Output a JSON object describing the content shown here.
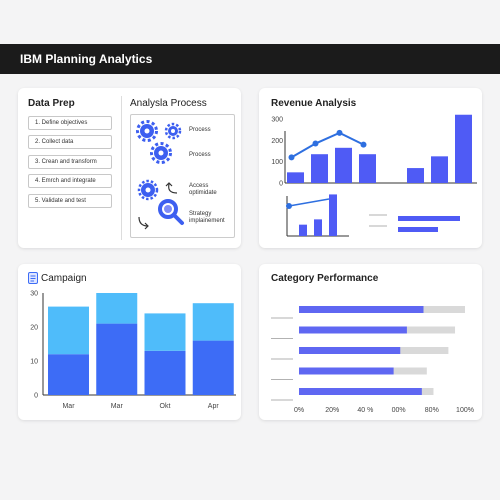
{
  "header": {
    "title": "IBM Planning Analytics"
  },
  "data_prep": {
    "title": "Data Prep",
    "steps": [
      "1. Define objectives",
      "2. Collect data",
      "3. Crean and transform",
      "4. Emrch and integrate",
      "5. Validate and test"
    ],
    "process_title": "Analysla Process",
    "process_items": [
      {
        "icon": "gears-icon",
        "label": "Process"
      },
      {
        "icon": "gear-icon",
        "label": "Process"
      },
      {
        "icon": "cycle-icon",
        "label": "Access optimidate"
      },
      {
        "icon": "magnifier-icon",
        "label": "Strategy implainement"
      }
    ]
  },
  "revenue": {
    "title": "Revenue Analysis",
    "colors": {
      "bar": "#4f5bf5",
      "line": "#2e6fe0"
    }
  },
  "campaign": {
    "title": "Campaign",
    "icon": "document-icon"
  },
  "category": {
    "title": "Category Performance"
  },
  "chart_data": [
    {
      "id": "revenue-analysis",
      "type": "bar",
      "title": "Revenue Analysis",
      "ylim": [
        0,
        300
      ],
      "yticks": [
        0,
        100,
        200,
        300
      ],
      "bars": [
        50,
        135,
        165,
        135,
        0,
        70,
        125,
        320
      ],
      "line": [
        120,
        185,
        235,
        180
      ],
      "grid": false
    },
    {
      "id": "revenue-mini",
      "type": "bar",
      "bars": [
        0.15,
        0.22,
        0.55
      ],
      "line": [
        0.45,
        0.48
      ]
    },
    {
      "id": "campaign",
      "type": "bar",
      "title": "Campaign",
      "categories": [
        "Mar",
        "Mar",
        "Okt",
        "Apr"
      ],
      "ylim": [
        0,
        30
      ],
      "yticks": [
        0,
        10,
        20,
        30
      ],
      "series": [
        {
          "values": [
            12,
            21,
            13,
            16
          ],
          "color": "#3d6cf6"
        },
        {
          "values": [
            14,
            9,
            11,
            11
          ],
          "color": "#4fbcfa"
        }
      ],
      "grid": false
    },
    {
      "id": "category-performance",
      "type": "bar",
      "orientation": "horizontal",
      "title": "Category Performance",
      "xticks": [
        "0%",
        "20%",
        "40 %",
        "00%",
        "80%",
        "100%"
      ],
      "xlim": [
        0,
        100
      ],
      "values": [
        75,
        65,
        61,
        57,
        74
      ],
      "totals": [
        100,
        94,
        90,
        77,
        81
      ],
      "colors": {
        "value": "#5f67f2",
        "total": "#d9d9d9"
      }
    }
  ]
}
